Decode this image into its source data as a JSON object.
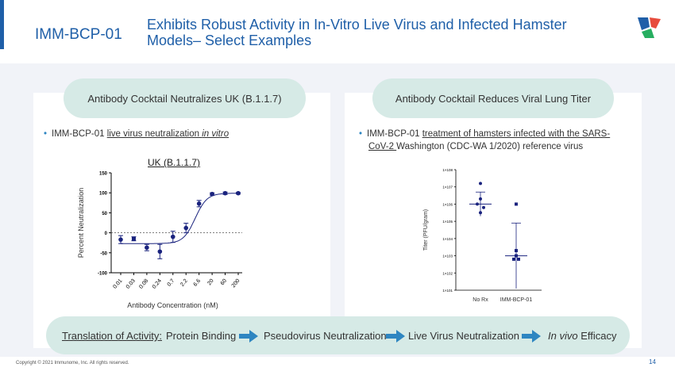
{
  "header": {
    "code": "IMM-BCP-01",
    "title": "Exhibits Robust Activity in In-Vitro Live Virus and Infected Hamster Models– Select Examples"
  },
  "left_panel": {
    "pill": "Antibody Cocktail Neutralizes UK (B.1.1.7)",
    "bullet_prefix": "IMM-BCP-01 ",
    "bullet_underlined": "live virus neutralization ",
    "bullet_italic": "in vitro",
    "chart_title": "UK (B.1.1.7)"
  },
  "right_panel": {
    "pill": "Antibody Cocktail Reduces Viral Lung Titer",
    "bullet_prefix": "IMM-BCP-01 ",
    "bullet_underlined_1": "treatment of hamsters infected with the SARS-",
    "bullet_underlined_2": "CoV-2 ",
    "bullet_rest": "Washington (CDC-WA 1/2020) reference virus"
  },
  "footer": {
    "label": "Translation of Activity: ",
    "steps": [
      "Protein Binding",
      "Pseudovirus Neutralization",
      "Live Virus Neutralization"
    ],
    "last_italic": "In vivo",
    "last_rest": " Efficacy",
    "copyright": "Copyright © 2021 Immunome, Inc. All rights reserved.",
    "page": "14"
  },
  "colors": {
    "brand": "#1f5fa8",
    "pill": "#d6eae6",
    "data": "#1a237e",
    "arrow": "#2e86c1"
  },
  "chart_data": [
    {
      "type": "line",
      "title": "UK (B.1.1.7)",
      "xlabel": "Antibody Concentration (nM)",
      "ylabel": "Percent Neutralization",
      "categories": [
        "0.01",
        "0.03",
        "0.08",
        "0.24",
        "0.7",
        "2.2",
        "6.6",
        "20",
        "60",
        "200"
      ],
      "values": [
        -17,
        -15,
        -37,
        -47,
        -10,
        12,
        73,
        97,
        99,
        99
      ],
      "ylim": [
        -100,
        150
      ],
      "yticks": [
        "150",
        "100",
        "50",
        "0",
        "-50",
        "-100"
      ]
    },
    {
      "type": "scatter",
      "xlabel": "",
      "ylabel": "Titer (PFU/gram)",
      "categories": [
        "No Rx",
        "IMM-BCP-01"
      ],
      "ytick_exponents": [
        1,
        2,
        3,
        4,
        5,
        6,
        7,
        8
      ],
      "series": [
        {
          "values_log10": [
            7.2,
            6.3,
            6.0,
            5.8,
            5.5
          ]
        },
        {
          "values_log10": [
            6.0,
            3.3,
            3.0,
            2.8,
            2.8
          ]
        }
      ],
      "means_log10": [
        6.0,
        3.0
      ]
    }
  ]
}
